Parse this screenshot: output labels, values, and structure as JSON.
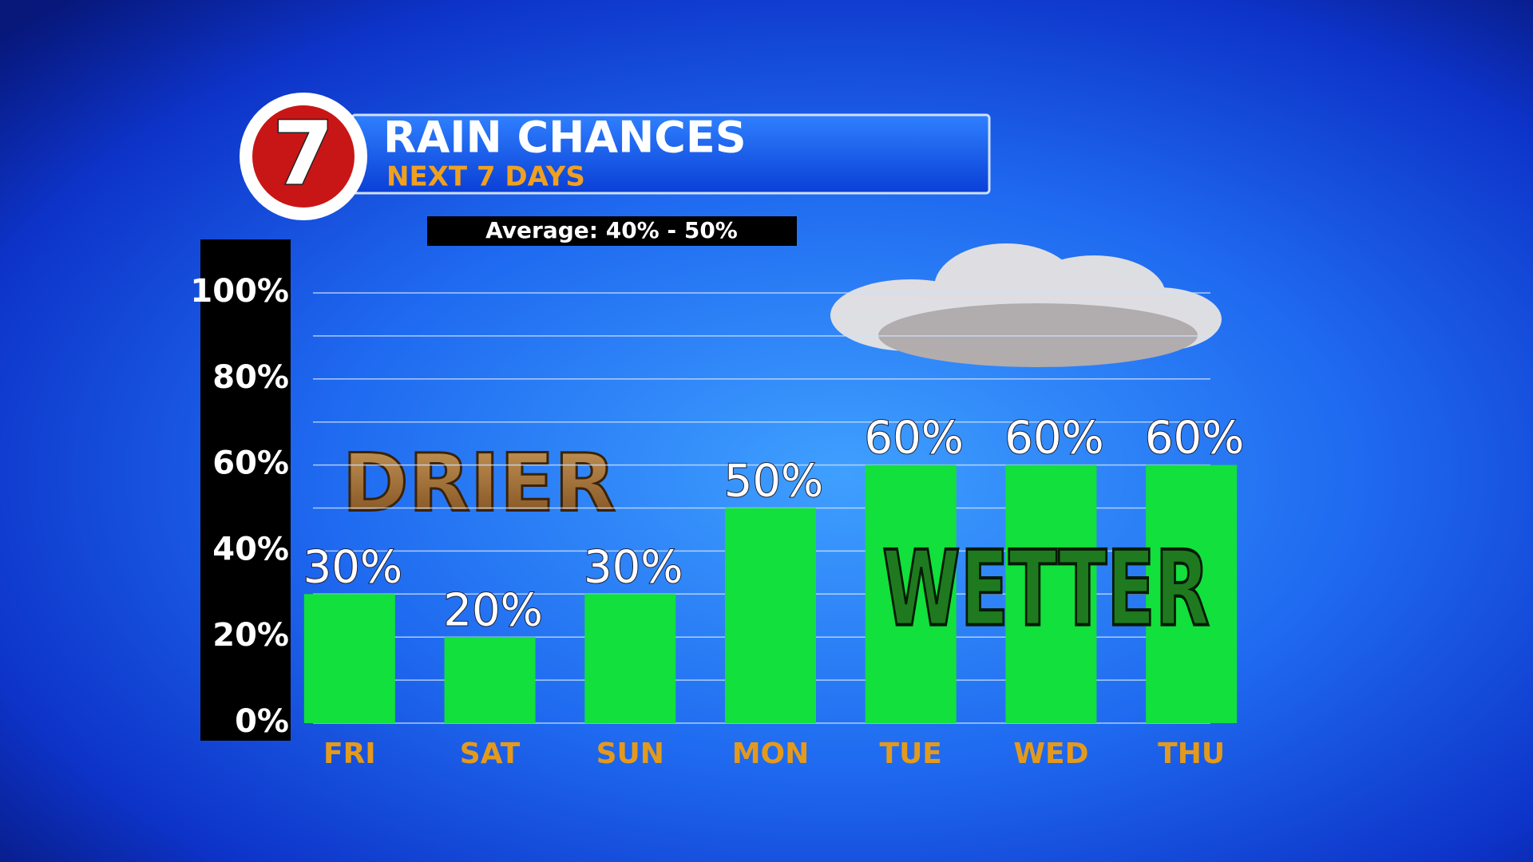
{
  "logo": "7",
  "chart_data": {
    "type": "bar",
    "title": "RAIN CHANCES",
    "subtitle": "NEXT 7 DAYS",
    "note": "Average: 40% - 50%",
    "annotations": [
      "DRIER",
      "WETTER"
    ],
    "categories": [
      "FRI",
      "SAT",
      "SUN",
      "MON",
      "TUE",
      "WED",
      "THU"
    ],
    "values": [
      30,
      20,
      30,
      50,
      60,
      60,
      60
    ],
    "value_labels": [
      "30%",
      "20%",
      "30%",
      "50%",
      "60%",
      "60%",
      "60%"
    ],
    "color": "#12e03c",
    "ylim": [
      0,
      100
    ],
    "yticks": [
      {
        "value": 0,
        "label": "0%"
      },
      {
        "value": 20,
        "label": "20%"
      },
      {
        "value": 40,
        "label": "40%"
      },
      {
        "value": 60,
        "label": "60%"
      },
      {
        "value": 80,
        "label": "80%"
      },
      {
        "value": 100,
        "label": "100%"
      }
    ],
    "minor_yticks": [
      10,
      30,
      50,
      70,
      90
    ],
    "grid": true
  }
}
